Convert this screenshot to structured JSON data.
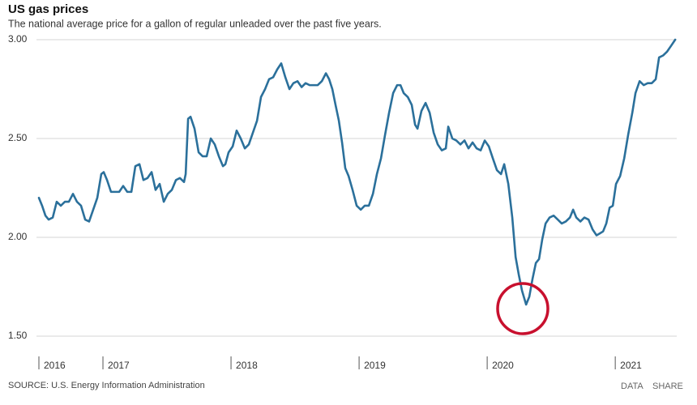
{
  "chart_data": {
    "type": "line",
    "title": "US gas prices",
    "subtitle": "The national average price for a gallon of regular unleaded over the past five years.",
    "color": "#2b709b",
    "grid": true,
    "xlim": [
      2016.5,
      2021.48
    ],
    "xticks": [
      {
        "value": 2016.5,
        "label": "2016"
      },
      2017,
      2018,
      2019,
      2020,
      2021
    ],
    "ylim": [
      1.5,
      3.0
    ],
    "yticks": [
      {
        "value": 1.5,
        "label": "1.50"
      },
      {
        "value": 2.0,
        "label": "2.00"
      },
      {
        "value": 2.5,
        "label": "2.50"
      },
      {
        "value": 3.0,
        "label": "3.00"
      }
    ],
    "x": [
      2016.5,
      2016.525,
      2016.551,
      2016.576,
      2016.608,
      2016.639,
      2016.671,
      2016.703,
      2016.734,
      2016.766,
      2016.797,
      2016.829,
      2016.861,
      2016.892,
      2016.924,
      2016.956,
      2016.987,
      2017.006,
      2017.032,
      2017.063,
      2017.095,
      2017.127,
      2017.158,
      2017.19,
      2017.222,
      2017.253,
      2017.285,
      2017.316,
      2017.348,
      2017.38,
      2017.411,
      2017.443,
      2017.475,
      2017.506,
      2017.538,
      2017.57,
      2017.601,
      2017.633,
      2017.646,
      2017.665,
      2017.684,
      2017.715,
      2017.747,
      2017.778,
      2017.81,
      2017.842,
      2017.873,
      2017.905,
      2017.937,
      2017.956,
      2017.981,
      2018.013,
      2018.044,
      2018.076,
      2018.108,
      2018.139,
      2018.171,
      2018.203,
      2018.234,
      2018.266,
      2018.297,
      2018.329,
      2018.361,
      2018.392,
      2018.424,
      2018.456,
      2018.487,
      2018.519,
      2018.551,
      2018.582,
      2018.614,
      2018.646,
      2018.677,
      2018.709,
      2018.741,
      2018.766,
      2018.791,
      2018.816,
      2018.842,
      2018.867,
      2018.892,
      2018.918,
      2018.949,
      2018.981,
      2019.013,
      2019.044,
      2019.076,
      2019.108,
      2019.139,
      2019.171,
      2019.203,
      2019.234,
      2019.266,
      2019.297,
      2019.323,
      2019.348,
      2019.38,
      2019.411,
      2019.437,
      2019.456,
      2019.487,
      2019.519,
      2019.551,
      2019.582,
      2019.614,
      2019.646,
      2019.677,
      2019.696,
      2019.728,
      2019.759,
      2019.791,
      2019.823,
      2019.854,
      2019.886,
      2019.918,
      2019.949,
      2019.981,
      2020.013,
      2020.044,
      2020.076,
      2020.108,
      2020.133,
      2020.165,
      2020.196,
      2020.222,
      2020.247,
      2020.272,
      2020.304,
      2020.329,
      2020.354,
      2020.38,
      2020.405,
      2020.43,
      2020.456,
      2020.487,
      2020.519,
      2020.551,
      2020.582,
      2020.614,
      2020.646,
      2020.671,
      2020.696,
      2020.728,
      2020.759,
      2020.791,
      2020.823,
      2020.854,
      2020.88,
      2020.905,
      2020.93,
      2020.956,
      2020.981,
      2021.006,
      2021.038,
      2021.07,
      2021.101,
      2021.133,
      2021.158,
      2021.19,
      2021.222,
      2021.253,
      2021.285,
      2021.316,
      2021.342,
      2021.373,
      2021.405,
      2021.437,
      2021.468
    ],
    "values": [
      2.2,
      2.16,
      2.11,
      2.09,
      2.1,
      2.18,
      2.16,
      2.18,
      2.18,
      2.22,
      2.18,
      2.16,
      2.09,
      2.08,
      2.14,
      2.2,
      2.32,
      2.33,
      2.29,
      2.23,
      2.23,
      2.23,
      2.26,
      2.23,
      2.23,
      2.36,
      2.37,
      2.29,
      2.3,
      2.33,
      2.24,
      2.27,
      2.18,
      2.22,
      2.24,
      2.29,
      2.3,
      2.28,
      2.32,
      2.6,
      2.61,
      2.55,
      2.43,
      2.41,
      2.41,
      2.5,
      2.47,
      2.41,
      2.36,
      2.37,
      2.43,
      2.46,
      2.54,
      2.5,
      2.45,
      2.47,
      2.53,
      2.59,
      2.71,
      2.75,
      2.8,
      2.81,
      2.85,
      2.88,
      2.81,
      2.75,
      2.78,
      2.79,
      2.76,
      2.78,
      2.77,
      2.77,
      2.77,
      2.79,
      2.83,
      2.8,
      2.75,
      2.67,
      2.59,
      2.48,
      2.35,
      2.31,
      2.24,
      2.16,
      2.14,
      2.16,
      2.16,
      2.22,
      2.32,
      2.4,
      2.52,
      2.63,
      2.73,
      2.77,
      2.77,
      2.73,
      2.71,
      2.67,
      2.57,
      2.55,
      2.64,
      2.68,
      2.63,
      2.53,
      2.47,
      2.44,
      2.45,
      2.56,
      2.5,
      2.49,
      2.47,
      2.49,
      2.45,
      2.48,
      2.45,
      2.44,
      2.49,
      2.46,
      2.4,
      2.34,
      2.32,
      2.37,
      2.27,
      2.1,
      1.9,
      1.81,
      1.73,
      1.66,
      1.7,
      1.79,
      1.87,
      1.89,
      1.99,
      2.07,
      2.1,
      2.11,
      2.09,
      2.07,
      2.08,
      2.1,
      2.14,
      2.1,
      2.08,
      2.1,
      2.09,
      2.04,
      2.01,
      2.02,
      2.03,
      2.07,
      2.15,
      2.16,
      2.27,
      2.31,
      2.4,
      2.52,
      2.63,
      2.73,
      2.79,
      2.77,
      2.78,
      2.78,
      2.8,
      2.91,
      2.92,
      2.94,
      2.97,
      3.0
    ]
  },
  "source": "SOURCE: U.S. Energy Information Administration",
  "actions": [
    "DATA",
    "SHARE"
  ]
}
